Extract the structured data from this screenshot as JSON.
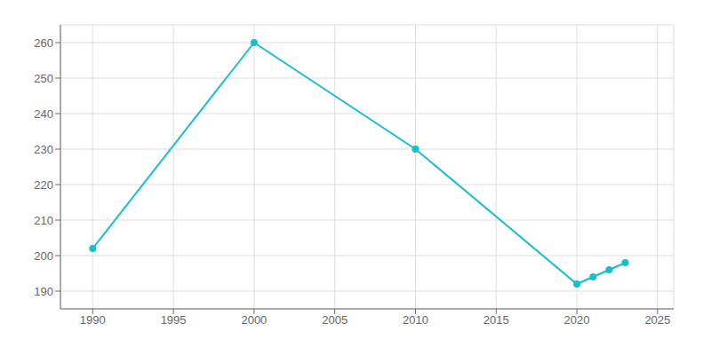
{
  "chart_data": {
    "type": "line",
    "x": [
      1990,
      2000,
      2010,
      2020,
      2021,
      2022,
      2023
    ],
    "values": [
      202,
      260,
      230,
      192,
      194,
      196,
      198
    ],
    "color": "#17becf",
    "marker": "circle",
    "xlim": [
      1988,
      2026
    ],
    "ylim": [
      185,
      265
    ],
    "xticks": [
      1990,
      1995,
      2000,
      2005,
      2010,
      2015,
      2020,
      2025
    ],
    "yticks": [
      190,
      200,
      210,
      220,
      230,
      240,
      250,
      260
    ],
    "grid": true
  }
}
